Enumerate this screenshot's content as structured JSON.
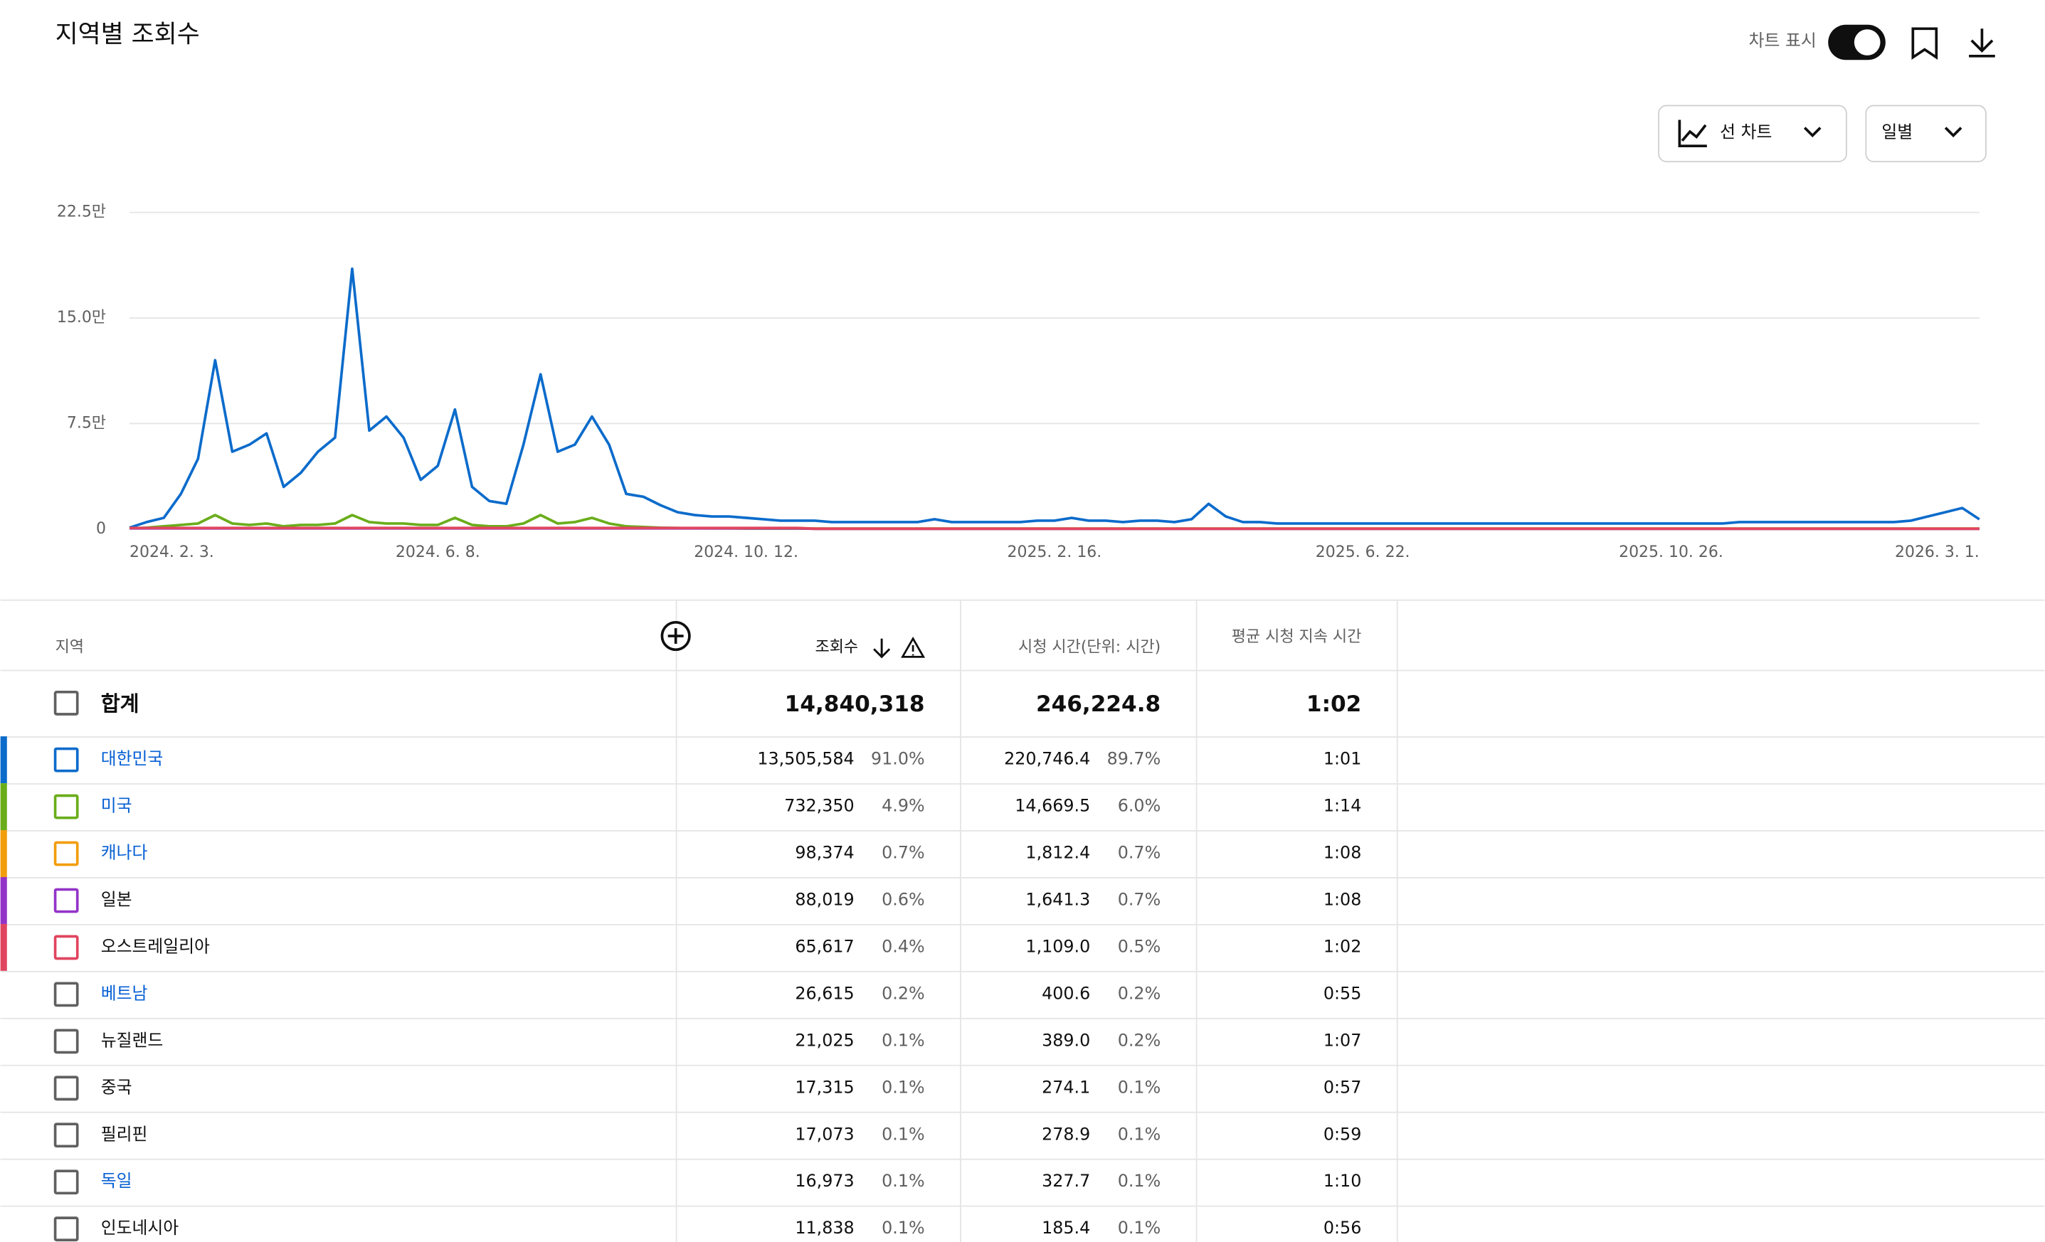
{
  "header": {
    "title": "지역별 조회수",
    "chart_toggle_label": "차트 표시",
    "chart_type": "선 차트",
    "interval": "일별"
  },
  "chart_data": {
    "type": "line",
    "categories": [
      "2024. 2. 3.",
      null,
      null,
      null,
      null,
      null,
      null,
      null,
      null,
      null,
      null,
      null,
      null,
      null,
      null,
      null,
      null,
      null,
      "2024. 6. 8.",
      null,
      null,
      null,
      null,
      null,
      null,
      null,
      null,
      null,
      null,
      null,
      null,
      null,
      null,
      null,
      null,
      null,
      "2024. 10. 12.",
      null,
      null,
      null,
      null,
      null,
      null,
      null,
      null,
      null,
      null,
      null,
      null,
      null,
      null,
      null,
      null,
      null,
      "2025. 2. 16.",
      null,
      null,
      null,
      null,
      null,
      null,
      null,
      null,
      null,
      null,
      null,
      null,
      null,
      null,
      null,
      null,
      null,
      "2025. 6. 22.",
      null,
      null,
      null,
      null,
      null,
      null,
      null,
      null,
      null,
      null,
      null,
      null,
      null,
      null,
      null,
      null,
      null,
      "2025. 10. 26.",
      null,
      null,
      null,
      null,
      null,
      null,
      null,
      null,
      null,
      null,
      null,
      null,
      null,
      null,
      null,
      null,
      null,
      "2026. 3. 1."
    ],
    "series": [
      {
        "name": "대한민국",
        "color": "#0b6bcb",
        "values": [
          1000,
          5000,
          8000,
          25000,
          50000,
          120000,
          55000,
          60000,
          68000,
          30000,
          40000,
          55000,
          65000,
          185000,
          70000,
          80000,
          65000,
          35000,
          45000,
          85000,
          30000,
          20000,
          18000,
          60000,
          110000,
          55000,
          60000,
          80000,
          60000,
          25000,
          23000,
          17000,
          12000,
          10000,
          9000,
          9000,
          8000,
          7000,
          6000,
          6000,
          6000,
          5000,
          5000,
          5000,
          5000,
          5000,
          5000,
          7000,
          5000,
          5000,
          5000,
          5000,
          5000,
          6000,
          6000,
          8000,
          6000,
          6000,
          5000,
          6000,
          6000,
          5000,
          7000,
          18000,
          9000,
          5000,
          5000,
          4000,
          4000,
          4000,
          4000,
          4000,
          4000,
          4000,
          4000,
          4000,
          4000,
          4000,
          4000,
          4000,
          4000,
          4000,
          4000,
          4000,
          4000,
          4000,
          4000,
          4000,
          4000,
          4000,
          4000,
          4000,
          4000,
          4000,
          5000,
          5000,
          5000,
          5000,
          5000,
          5000,
          5000,
          5000,
          5000,
          5000,
          6000,
          9000,
          12000,
          15000,
          7000
        ]
      },
      {
        "name": "미국",
        "color": "#6aad1a",
        "values": [
          500,
          1000,
          2000,
          3000,
          4000,
          10000,
          4000,
          3000,
          4000,
          2000,
          3000,
          3000,
          4000,
          10000,
          5000,
          4000,
          4000,
          3000,
          3000,
          8000,
          3000,
          2000,
          2000,
          4000,
          10000,
          4000,
          5000,
          8000,
          4000,
          2000,
          1500,
          1000,
          800,
          600,
          500,
          500,
          400,
          400,
          400,
          400,
          400,
          400,
          400,
          400,
          400,
          400,
          400,
          400,
          400,
          400,
          400,
          400,
          400,
          400,
          400,
          400,
          400,
          400,
          400,
          400,
          400,
          400,
          400,
          400,
          400,
          400,
          400,
          400,
          400,
          400,
          400,
          400,
          400,
          400,
          400,
          400,
          400,
          400,
          400,
          400,
          400,
          400,
          400,
          400,
          400,
          400,
          400,
          400,
          400,
          400,
          400,
          400,
          400,
          400,
          400,
          400,
          400,
          400,
          400,
          400,
          400,
          400,
          400,
          400,
          400,
          400,
          400,
          400,
          400
        ]
      },
      {
        "name": "캐나다",
        "color": "#f29d0c",
        "values": [
          700,
          700,
          700,
          700,
          700,
          700,
          700,
          700,
          700,
          700,
          700,
          700,
          700,
          700,
          700,
          700,
          700,
          700,
          700,
          700,
          700,
          700,
          700,
          700,
          700,
          700,
          700,
          700,
          700,
          700,
          700,
          700,
          700,
          700,
          700,
          700,
          700,
          700,
          700,
          700,
          300,
          300,
          300,
          300,
          300,
          300,
          300,
          300,
          300,
          300,
          300,
          300,
          300,
          300,
          300,
          300,
          300,
          300,
          300,
          300,
          300,
          300,
          300,
          300,
          300,
          300,
          300,
          300,
          300,
          300,
          300,
          300,
          300,
          300,
          300,
          300,
          300,
          300,
          300,
          300,
          300,
          300,
          300,
          300,
          300,
          300,
          300,
          300,
          300,
          300,
          300,
          300,
          300,
          300,
          300,
          300,
          300,
          300,
          300,
          300,
          300,
          300,
          300,
          300,
          300,
          300,
          300,
          300,
          300
        ]
      },
      {
        "name": "일본",
        "color": "#9334c8",
        "values": [
          500,
          500,
          500,
          500,
          500,
          500,
          500,
          500,
          500,
          500,
          500,
          500,
          500,
          500,
          500,
          500,
          500,
          500,
          500,
          500,
          500,
          500,
          500,
          500,
          500,
          500,
          500,
          500,
          500,
          500,
          500,
          500,
          500,
          500,
          500,
          500,
          500,
          500,
          500,
          500,
          200,
          200,
          200,
          200,
          200,
          200,
          200,
          200,
          200,
          200,
          200,
          200,
          200,
          200,
          200,
          200,
          200,
          200,
          200,
          200,
          200,
          200,
          200,
          200,
          200,
          200,
          200,
          200,
          200,
          200,
          200,
          200,
          200,
          200,
          200,
          200,
          200,
          200,
          200,
          200,
          200,
          200,
          200,
          200,
          200,
          200,
          200,
          200,
          200,
          200,
          200,
          200,
          200,
          200,
          200,
          200,
          200,
          200,
          200,
          200,
          200,
          200,
          200,
          200,
          200,
          200,
          200,
          200,
          200
        ]
      },
      {
        "name": "오스트레일리아",
        "color": "#e0455f",
        "values": [
          800,
          800,
          800,
          800,
          800,
          800,
          800,
          800,
          800,
          800,
          800,
          800,
          800,
          800,
          800,
          800,
          800,
          800,
          800,
          800,
          800,
          800,
          800,
          800,
          800,
          800,
          800,
          800,
          800,
          800,
          800,
          800,
          800,
          800,
          800,
          800,
          800,
          800,
          800,
          800,
          300,
          300,
          300,
          300,
          300,
          300,
          300,
          300,
          300,
          300,
          300,
          300,
          300,
          300,
          300,
          300,
          300,
          300,
          300,
          300,
          300,
          300,
          300,
          300,
          300,
          300,
          300,
          300,
          300,
          300,
          300,
          300,
          300,
          300,
          300,
          300,
          300,
          300,
          300,
          300,
          300,
          300,
          300,
          300,
          300,
          300,
          300,
          300,
          300,
          300,
          300,
          300,
          300,
          300,
          300,
          300,
          300,
          300,
          300,
          300,
          300,
          300,
          300,
          300,
          300,
          300,
          300,
          300,
          300
        ]
      }
    ],
    "ylim": [
      0,
      225000
    ],
    "yticks": [
      {
        "value": 0,
        "label": "0"
      },
      {
        "value": 75000,
        "label": "7.5만"
      },
      {
        "value": 150000,
        "label": "15.0만"
      },
      {
        "value": 225000,
        "label": "22.5만"
      }
    ],
    "grid": true
  },
  "table": {
    "columns": [
      "지역",
      "조회수",
      "시청 시간(단위: 시간)",
      "평균 시청 지속 시간"
    ],
    "total": [
      "합계",
      "14,840,318",
      "246,224.8",
      "1:02"
    ],
    "rows": [
      {
        "cells": [
          "대한민국",
          "13,505,584",
          "91.0%",
          "220,746.4",
          "89.7%",
          "1:01"
        ],
        "color": "#0b6bcb",
        "link": true
      },
      {
        "cells": [
          "미국",
          "732,350",
          "4.9%",
          "14,669.5",
          "6.0%",
          "1:14"
        ],
        "color": "#6aad1a",
        "link": true
      },
      {
        "cells": [
          "캐나다",
          "98,374",
          "0.7%",
          "1,812.4",
          "0.7%",
          "1:08"
        ],
        "color": "#f29d0c",
        "link": true
      },
      {
        "cells": [
          "일본",
          "88,019",
          "0.6%",
          "1,641.3",
          "0.7%",
          "1:08"
        ],
        "color": "#9334c8",
        "link": false
      },
      {
        "cells": [
          "오스트레일리아",
          "65,617",
          "0.4%",
          "1,109.0",
          "0.5%",
          "1:02"
        ],
        "color": "#e0455f",
        "link": false
      },
      {
        "cells": [
          "베트남",
          "26,615",
          "0.2%",
          "400.6",
          "0.2%",
          "0:55"
        ],
        "link": true
      },
      {
        "cells": [
          "뉴질랜드",
          "21,025",
          "0.1%",
          "389.0",
          "0.2%",
          "1:07"
        ],
        "link": false
      },
      {
        "cells": [
          "중국",
          "17,315",
          "0.1%",
          "274.1",
          "0.1%",
          "0:57"
        ],
        "link": false
      },
      {
        "cells": [
          "필리핀",
          "17,073",
          "0.1%",
          "278.9",
          "0.1%",
          "0:59"
        ],
        "link": false
      },
      {
        "cells": [
          "독일",
          "16,973",
          "0.1%",
          "327.7",
          "0.1%",
          "1:10"
        ],
        "link": true
      },
      {
        "cells": [
          "인도네시아",
          "11,838",
          "0.1%",
          "185.4",
          "0.1%",
          "0:56"
        ],
        "link": false
      }
    ]
  }
}
